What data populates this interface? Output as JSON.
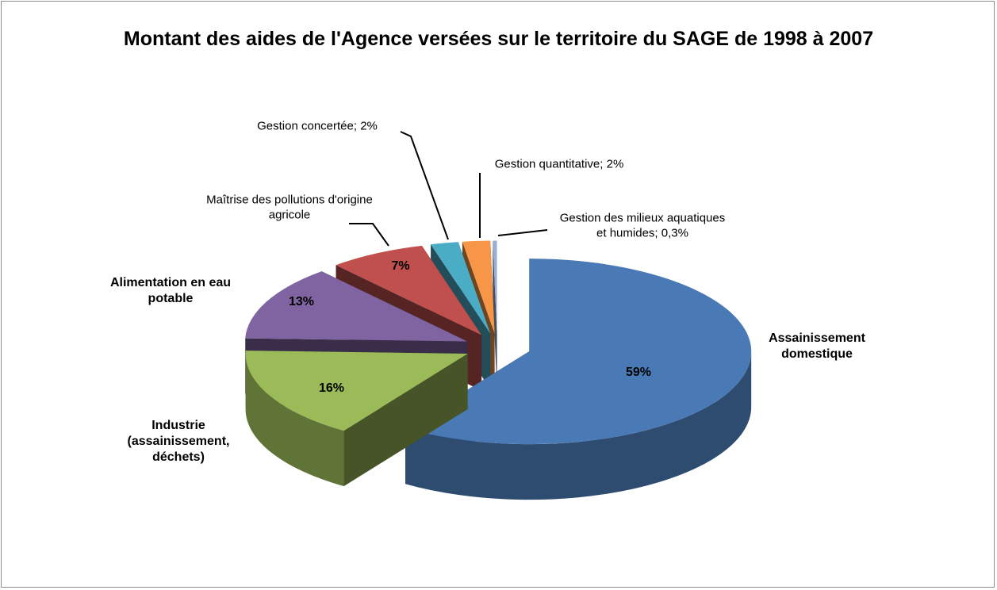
{
  "chart_data": {
    "type": "pie3d",
    "title": "Montant des aides de l'Agence versées sur le territoire du SAGE de 1998 à 2007",
    "categories": [
      "Assainissement domestique",
      "Industrie (assainissement, déchets)",
      "Alimentation en eau potable",
      "Maîtrise des pollutions d'origine agricole",
      "Gestion concertée",
      "Gestion quantitative",
      "Gestion des milieux aquatiques et humides"
    ],
    "values": [
      59,
      16,
      13,
      7,
      2,
      2,
      0.3
    ],
    "value_labels": [
      "59%",
      "16%",
      "13%",
      "7%",
      "2%",
      "2%",
      "0,3%"
    ],
    "label_separator": "; ",
    "colors": [
      "#4a7ab5",
      "#9bbb59",
      "#8064a2",
      "#c0504d",
      "#4bacc6",
      "#f79646",
      "#9aaed0"
    ]
  }
}
